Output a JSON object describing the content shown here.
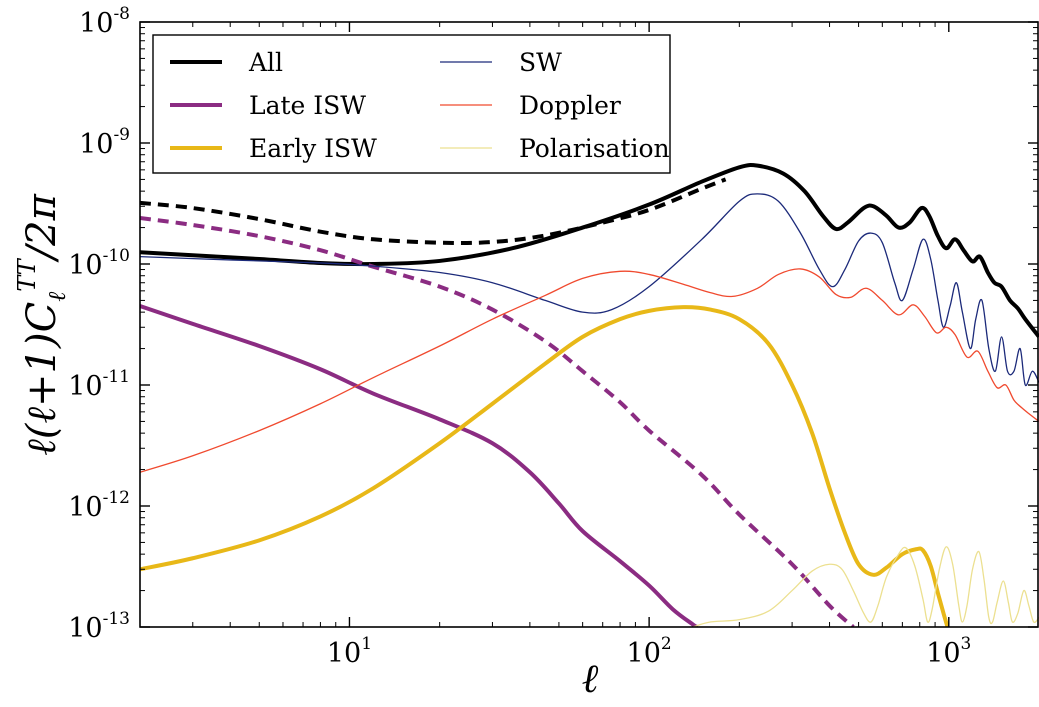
{
  "chart_data": {
    "type": "line",
    "title": "",
    "xlabel": "ℓ",
    "ylabel": "ℓ(ℓ+1)C_ℓ^TT/2π",
    "xscale": "log",
    "yscale": "log",
    "xlim": [
      2,
      2000
    ],
    "ylim": [
      1e-13,
      1e-08
    ],
    "grid": false,
    "legend_position": "top-left",
    "x_ticks": [
      {
        "value": 10,
        "base": "10",
        "exp": "1"
      },
      {
        "value": 100,
        "base": "10",
        "exp": "2"
      },
      {
        "value": 1000,
        "base": "10",
        "exp": "3"
      }
    ],
    "y_ticks": [
      {
        "value": 1e-13,
        "base": "10",
        "exp": "-13"
      },
      {
        "value": 1e-12,
        "base": "10",
        "exp": "-12"
      },
      {
        "value": 1e-11,
        "base": "10",
        "exp": "-11"
      },
      {
        "value": 1e-10,
        "base": "10",
        "exp": "-10"
      },
      {
        "value": 1e-09,
        "base": "10",
        "exp": "-9"
      },
      {
        "value": 1e-08,
        "base": "10",
        "exp": "-8"
      }
    ],
    "legend": [
      {
        "label": "All",
        "color": "#000000",
        "width": 4
      },
      {
        "label": "Late ISW",
        "color": "#8b2c82",
        "width": 4
      },
      {
        "label": "Early ISW",
        "color": "#e8b818",
        "width": 4
      },
      {
        "label": "SW",
        "color": "#1c2a7a",
        "width": 1.3
      },
      {
        "label": "Doppler",
        "color": "#f04a2f",
        "width": 1.3
      },
      {
        "label": "Polarisation",
        "color": "#ece090",
        "width": 1.3
      }
    ],
    "series": [
      {
        "name": "All",
        "color": "#000000",
        "width": 4,
        "dash": "",
        "points": [
          [
            2,
            1.25e-10
          ],
          [
            3,
            1.18e-10
          ],
          [
            5,
            1.1e-10
          ],
          [
            8,
            1.02e-10
          ],
          [
            12,
            1e-10
          ],
          [
            20,
            1.06e-10
          ],
          [
            35,
            1.35e-10
          ],
          [
            60,
            2e-10
          ],
          [
            100,
            3.1e-10
          ],
          [
            150,
            4.8e-10
          ],
          [
            200,
            6.3e-10
          ],
          [
            230,
            6.5e-10
          ],
          [
            280,
            5.6e-10
          ],
          [
            330,
            4e-10
          ],
          [
            380,
            2.5e-10
          ],
          [
            420,
            1.95e-10
          ],
          [
            460,
            2.2e-10
          ],
          [
            520,
            2.9e-10
          ],
          [
            560,
            3e-10
          ],
          [
            620,
            2.5e-10
          ],
          [
            680,
            2e-10
          ],
          [
            740,
            2.2e-10
          ],
          [
            810,
            2.9e-10
          ],
          [
            860,
            2.5e-10
          ],
          [
            920,
            1.7e-10
          ],
          [
            980,
            1.35e-10
          ],
          [
            1050,
            1.6e-10
          ],
          [
            1120,
            1.3e-10
          ],
          [
            1200,
            1.05e-10
          ],
          [
            1270,
            1.15e-10
          ],
          [
            1350,
            8.5e-11
          ],
          [
            1420,
            7e-11
          ],
          [
            1500,
            6.5e-11
          ],
          [
            1600,
            5e-11
          ],
          [
            1700,
            4.3e-11
          ],
          [
            1800,
            3.5e-11
          ],
          [
            2000,
            2.5e-11
          ]
        ]
      },
      {
        "name": "",
        "color": "#000000",
        "width": 4,
        "dash": "11,7",
        "points": [
          [
            2,
            3.2e-10
          ],
          [
            3,
            2.9e-10
          ],
          [
            5,
            2.35e-10
          ],
          [
            8,
            1.85e-10
          ],
          [
            12,
            1.6e-10
          ],
          [
            20,
            1.5e-10
          ],
          [
            30,
            1.52e-10
          ],
          [
            45,
            1.72e-10
          ],
          [
            70,
            2.2e-10
          ],
          [
            100,
            2.8e-10
          ],
          [
            150,
            4.2e-10
          ],
          [
            180,
            5e-10
          ]
        ]
      },
      {
        "name": "Late ISW",
        "color": "#8b2c82",
        "width": 4,
        "dash": "",
        "points": [
          [
            2,
            4.5e-11
          ],
          [
            3,
            3.2e-11
          ],
          [
            5,
            2.1e-11
          ],
          [
            8,
            1.35e-11
          ],
          [
            12,
            8.5e-12
          ],
          [
            20,
            5.2e-12
          ],
          [
            30,
            3.3e-12
          ],
          [
            40,
            1.9e-12
          ],
          [
            50,
            1.05e-12
          ],
          [
            60,
            6.2e-13
          ],
          [
            80,
            3.5e-13
          ],
          [
            100,
            2.2e-13
          ],
          [
            120,
            1.4e-13
          ],
          [
            140,
            1.05e-13
          ],
          [
            145,
            1e-13
          ]
        ]
      },
      {
        "name": "",
        "color": "#8b2c82",
        "width": 4,
        "dash": "11,7",
        "points": [
          [
            2,
            2.4e-10
          ],
          [
            3,
            2.1e-10
          ],
          [
            5,
            1.7e-10
          ],
          [
            8,
            1.3e-10
          ],
          [
            12,
            9.5e-11
          ],
          [
            20,
            6.5e-11
          ],
          [
            30,
            4.2e-11
          ],
          [
            45,
            2.3e-11
          ],
          [
            60,
            1.3e-11
          ],
          [
            80,
            7.2e-12
          ],
          [
            100,
            4.2e-12
          ],
          [
            150,
            1.8e-12
          ],
          [
            200,
            8.5e-13
          ],
          [
            300,
            3.3e-13
          ],
          [
            400,
            1.5e-13
          ],
          [
            480,
            1e-13
          ]
        ]
      },
      {
        "name": "Early ISW",
        "color": "#e8b818",
        "width": 4,
        "dash": "",
        "points": [
          [
            2,
            3e-13
          ],
          [
            3,
            3.7e-13
          ],
          [
            5,
            5.2e-13
          ],
          [
            8,
            8.2e-13
          ],
          [
            12,
            1.4e-12
          ],
          [
            20,
            3.3e-12
          ],
          [
            30,
            7e-12
          ],
          [
            45,
            1.5e-11
          ],
          [
            60,
            2.5e-11
          ],
          [
            80,
            3.5e-11
          ],
          [
            100,
            4.1e-11
          ],
          [
            130,
            4.4e-11
          ],
          [
            160,
            4.2e-11
          ],
          [
            200,
            3.5e-11
          ],
          [
            250,
            2.2e-11
          ],
          [
            300,
            1e-11
          ],
          [
            350,
            4e-12
          ],
          [
            400,
            1.4e-12
          ],
          [
            450,
            6e-13
          ],
          [
            500,
            3.3e-13
          ],
          [
            560,
            2.7e-13
          ],
          [
            620,
            3.1e-13
          ],
          [
            700,
            4e-13
          ],
          [
            780,
            4.4e-13
          ],
          [
            820,
            4.3e-13
          ],
          [
            870,
            3.2e-13
          ],
          [
            920,
            1.9e-13
          ],
          [
            960,
            1.3e-13
          ],
          [
            990,
            1e-13
          ]
        ]
      },
      {
        "name": "SW",
        "color": "#1c2a7a",
        "width": 1.3,
        "dash": "",
        "points": [
          [
            2,
            1.15e-10
          ],
          [
            4,
            1.08e-10
          ],
          [
            8,
            1.02e-10
          ],
          [
            12,
            9.6e-11
          ],
          [
            20,
            8.5e-11
          ],
          [
            30,
            7e-11
          ],
          [
            45,
            5e-11
          ],
          [
            60,
            4e-11
          ],
          [
            75,
            4.2e-11
          ],
          [
            100,
            6.5e-11
          ],
          [
            150,
            1.6e-10
          ],
          [
            200,
            3.3e-10
          ],
          [
            230,
            3.8e-10
          ],
          [
            270,
            3.3e-10
          ],
          [
            320,
            1.8e-10
          ],
          [
            370,
            9e-11
          ],
          [
            410,
            6.5e-11
          ],
          [
            450,
            9e-11
          ],
          [
            500,
            1.55e-10
          ],
          [
            550,
            1.8e-10
          ],
          [
            600,
            1.5e-10
          ],
          [
            660,
            7e-11
          ],
          [
            700,
            5e-11
          ],
          [
            760,
            9e-11
          ],
          [
            820,
            1.6e-10
          ],
          [
            870,
            1.1e-10
          ],
          [
            920,
            5e-11
          ],
          [
            960,
            3e-11
          ],
          [
            1010,
            4.5e-11
          ],
          [
            1060,
            7e-11
          ],
          [
            1110,
            4e-11
          ],
          [
            1180,
            2e-11
          ],
          [
            1230,
            3.5e-11
          ],
          [
            1290,
            5e-11
          ],
          [
            1360,
            2e-11
          ],
          [
            1430,
            1.3e-11
          ],
          [
            1500,
            2.5e-11
          ],
          [
            1570,
            1.3e-11
          ],
          [
            1650,
            1.3e-11
          ],
          [
            1730,
            2e-11
          ],
          [
            1800,
            1e-11
          ],
          [
            1900,
            1.3e-11
          ],
          [
            2000,
            1.05e-11
          ]
        ]
      },
      {
        "name": "Doppler",
        "color": "#f04a2f",
        "width": 1.3,
        "dash": "",
        "points": [
          [
            2,
            1.9e-12
          ],
          [
            3,
            2.6e-12
          ],
          [
            5,
            4.2e-12
          ],
          [
            8,
            7e-12
          ],
          [
            12,
            1.15e-11
          ],
          [
            20,
            2.1e-11
          ],
          [
            30,
            3.5e-11
          ],
          [
            45,
            5.5e-11
          ],
          [
            60,
            7.6e-11
          ],
          [
            80,
            8.7e-11
          ],
          [
            100,
            8.2e-11
          ],
          [
            130,
            6.8e-11
          ],
          [
            160,
            5.8e-11
          ],
          [
            190,
            5.4e-11
          ],
          [
            230,
            6.3e-11
          ],
          [
            270,
            8.2e-11
          ],
          [
            320,
            9.1e-11
          ],
          [
            370,
            7.8e-11
          ],
          [
            420,
            5.6e-11
          ],
          [
            470,
            5.3e-11
          ],
          [
            530,
            6.3e-11
          ],
          [
            600,
            5e-11
          ],
          [
            680,
            3.8e-11
          ],
          [
            760,
            4.6e-11
          ],
          [
            830,
            3.7e-11
          ],
          [
            910,
            2.7e-11
          ],
          [
            980,
            3e-11
          ],
          [
            1050,
            2.6e-11
          ],
          [
            1150,
            1.7e-11
          ],
          [
            1250,
            1.9e-11
          ],
          [
            1350,
            1.3e-11
          ],
          [
            1450,
            9.5e-12
          ],
          [
            1550,
            1e-11
          ],
          [
            1650,
            7.5e-12
          ],
          [
            1750,
            6.5e-12
          ],
          [
            1850,
            5.8e-12
          ],
          [
            2000,
            5e-12
          ]
        ]
      },
      {
        "name": "Polarisation",
        "color": "#ece090",
        "width": 1.3,
        "dash": "",
        "points": [
          [
            140,
            1e-13
          ],
          [
            160,
            1.1e-13
          ],
          [
            200,
            1.15e-13
          ],
          [
            250,
            1.35e-13
          ],
          [
            300,
            2e-13
          ],
          [
            350,
            2.9e-13
          ],
          [
            400,
            3.3e-13
          ],
          [
            440,
            3e-13
          ],
          [
            480,
            2e-13
          ],
          [
            520,
            1.3e-13
          ],
          [
            550,
            1.1e-13
          ],
          [
            580,
            1.5e-13
          ],
          [
            620,
            2.6e-13
          ],
          [
            680,
            4e-13
          ],
          [
            720,
            4.5e-13
          ],
          [
            770,
            3.2e-13
          ],
          [
            820,
            1.7e-13
          ],
          [
            850,
            1.1e-13
          ],
          [
            880,
            1.4e-13
          ],
          [
            930,
            3e-13
          ],
          [
            980,
            4.6e-13
          ],
          [
            1030,
            3.3e-13
          ],
          [
            1080,
            1.5e-13
          ],
          [
            1110,
            1.1e-13
          ],
          [
            1150,
            1.5e-13
          ],
          [
            1200,
            3e-13
          ],
          [
            1260,
            4.2e-13
          ],
          [
            1310,
            2.5e-13
          ],
          [
            1360,
            1.2e-13
          ],
          [
            1400,
            1.1e-13
          ],
          [
            1450,
            1.6e-13
          ],
          [
            1520,
            2.4e-13
          ],
          [
            1580,
            1.6e-13
          ],
          [
            1630,
            1.1e-13
          ],
          [
            1700,
            1.3e-13
          ],
          [
            1780,
            2e-13
          ],
          [
            1850,
            1.5e-13
          ],
          [
            1920,
            1.1e-13
          ],
          [
            2000,
            1.2e-13
          ]
        ]
      }
    ]
  }
}
